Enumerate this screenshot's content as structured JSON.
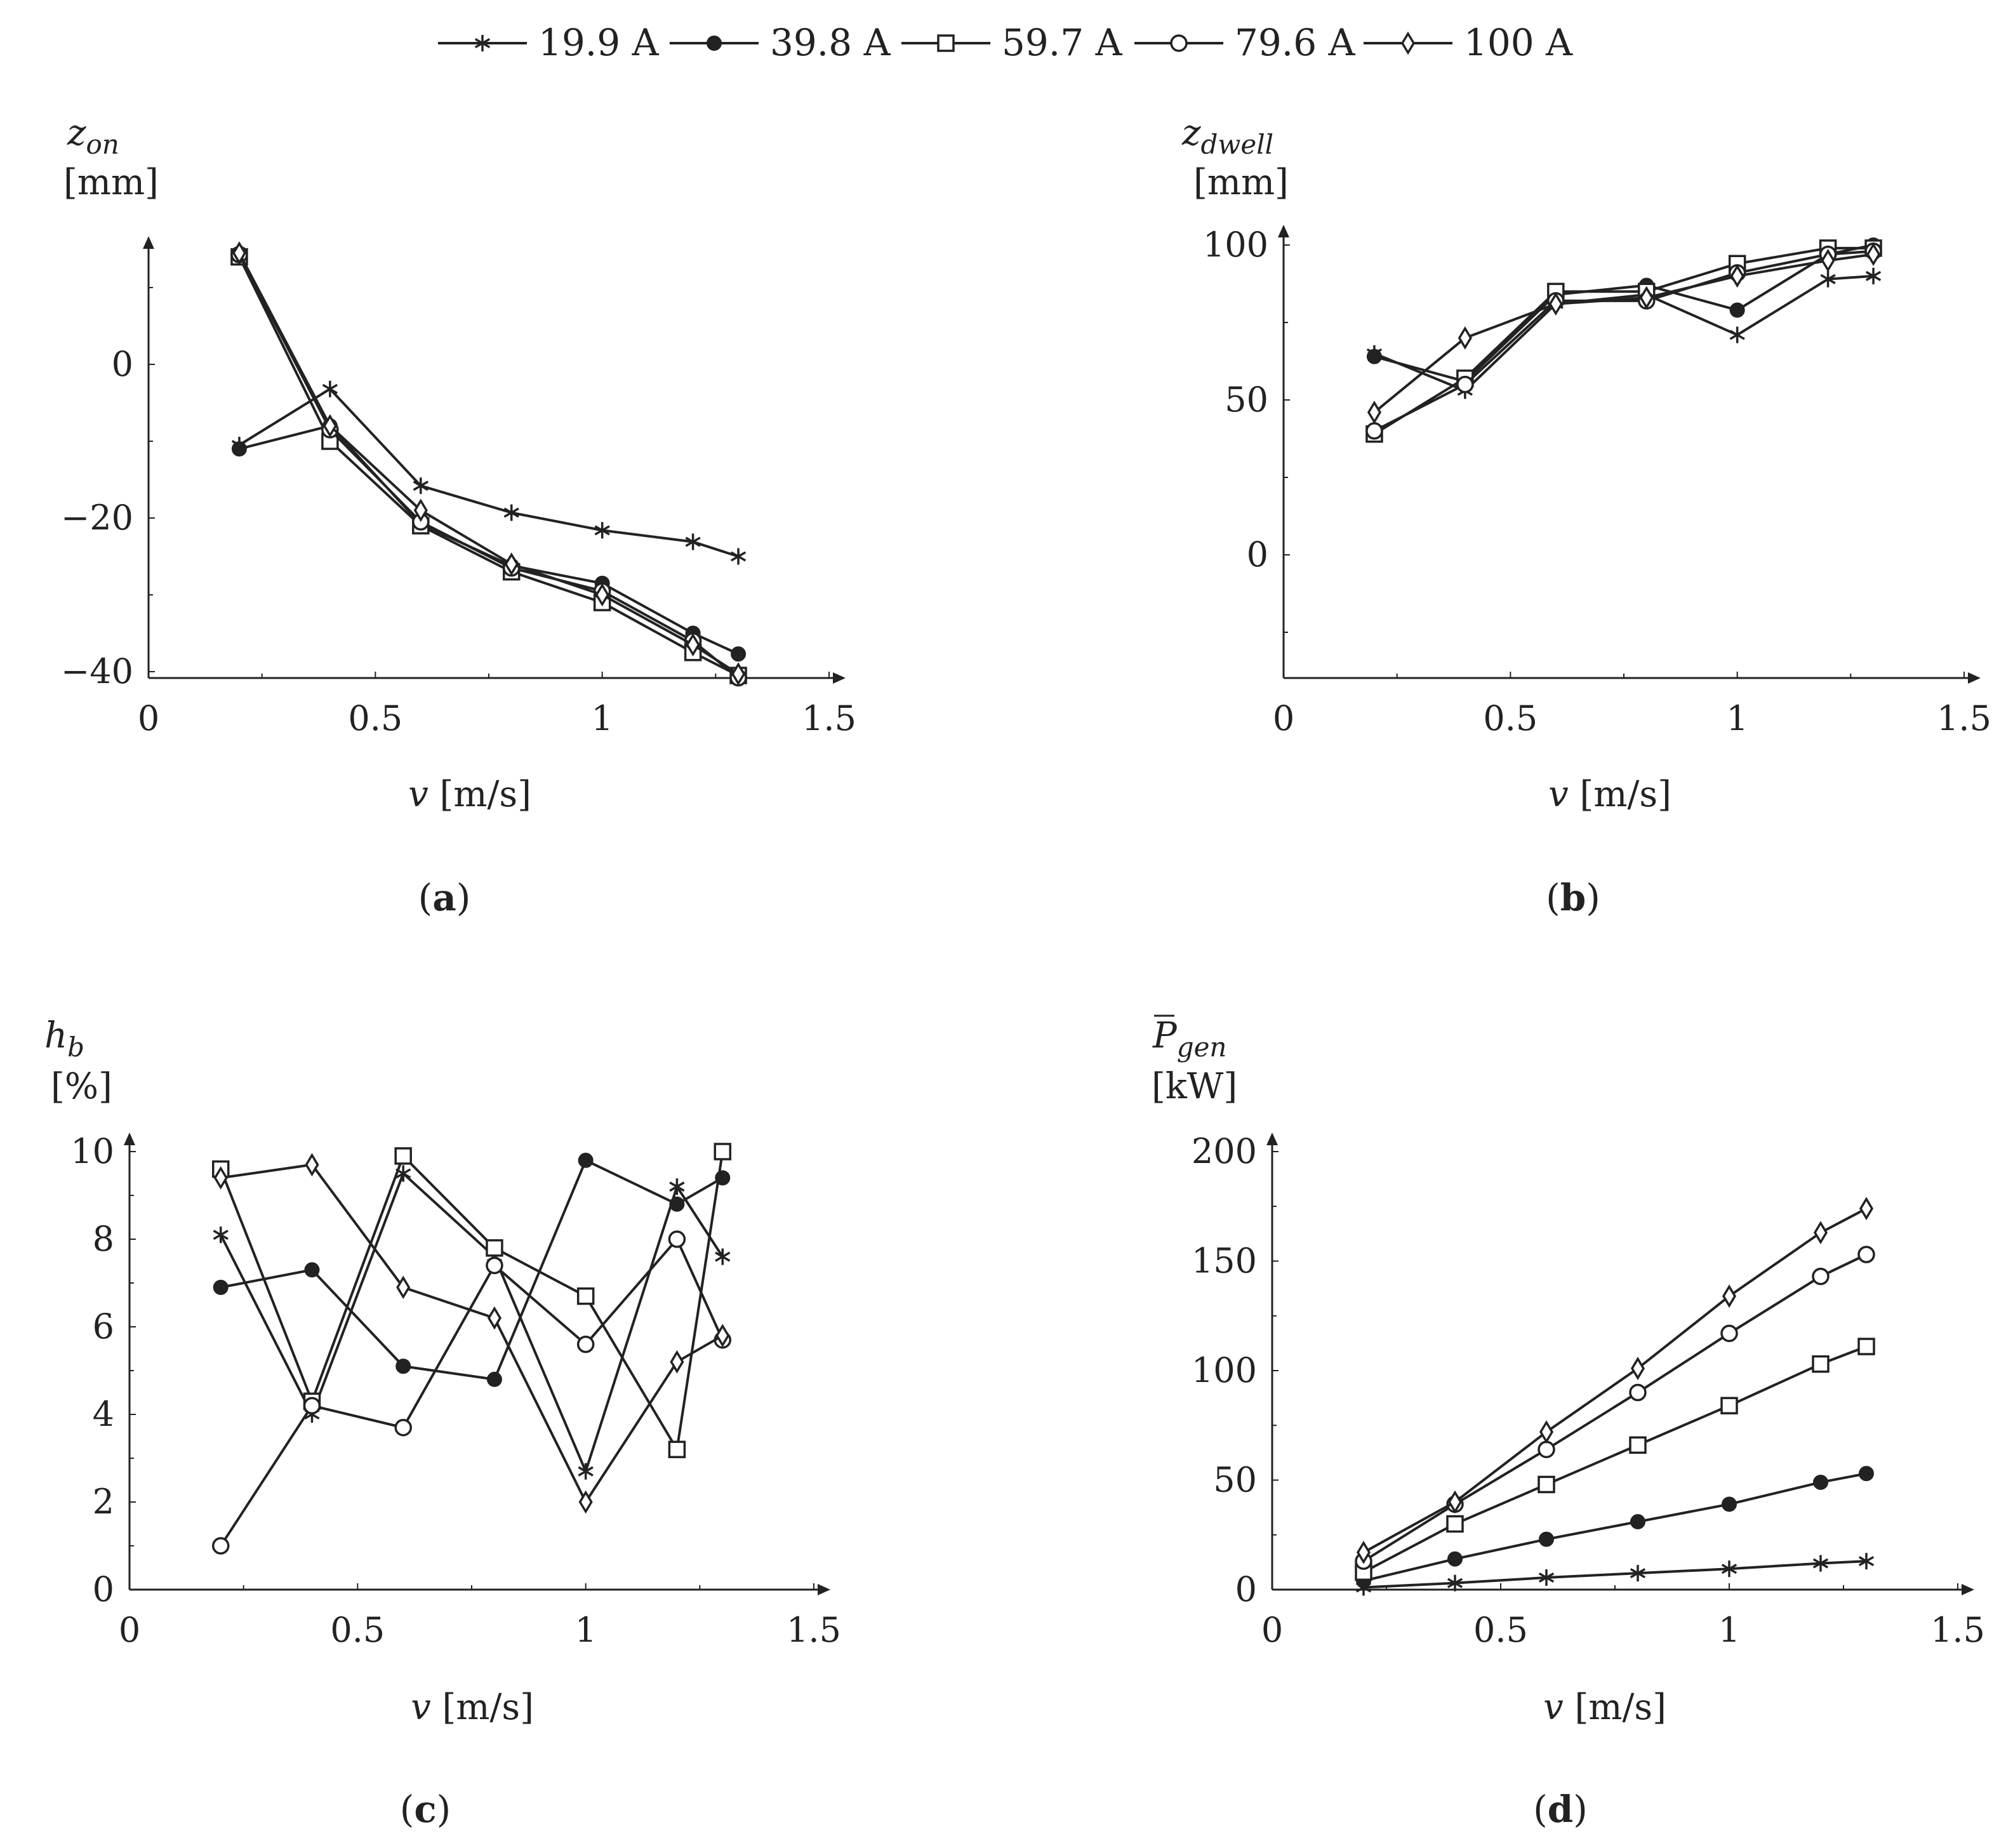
{
  "legend": [
    {
      "name": "19.9 A",
      "marker": "star"
    },
    {
      "name": "39.8 A",
      "marker": "filled-circle"
    },
    {
      "name": "59.7 A",
      "marker": "open-square"
    },
    {
      "name": "79.6 A",
      "marker": "open-circle"
    },
    {
      "name": "100 A",
      "marker": "open-diamond"
    }
  ],
  "chart_data": [
    {
      "type": "line",
      "panel": "(a)",
      "panel_letter": "a",
      "ylabel_symbol": "z",
      "ylabel_sub": "on",
      "ylabel_unit": "[mm]",
      "xlabel_symbol": "v",
      "xlabel_unit": "[m/s]",
      "xlim": [
        0,
        1.5
      ],
      "ylim": [
        -41,
        15
      ],
      "xticks": [
        {
          "v": 0,
          "label": "0"
        },
        {
          "v": 0.5,
          "label": "0.5"
        },
        {
          "v": 1,
          "label": "1"
        },
        {
          "v": 1.5,
          "label": "1.5"
        }
      ],
      "yticks": [
        {
          "v": -40,
          "label": "−40"
        },
        {
          "v": -20,
          "label": "−20"
        },
        {
          "v": 0,
          "label": "0"
        }
      ],
      "x": [
        0.2,
        0.4,
        0.6,
        0.8,
        1.0,
        1.2,
        1.3
      ],
      "series": [
        {
          "name": "19.9 A",
          "values": [
            -10.5,
            -3.2,
            -15.8,
            -19.3,
            -21.6,
            -23.1,
            -25.0
          ]
        },
        {
          "name": "39.8 A",
          "values": [
            -11.0,
            -8.0,
            -20.8,
            -26.2,
            -28.5,
            -35.0,
            -37.7
          ]
        },
        {
          "name": "59.7 A",
          "values": [
            14.0,
            -10.0,
            -21.0,
            -27.0,
            -31.0,
            -37.5,
            -40.5
          ]
        },
        {
          "name": "79.6 A",
          "values": [
            14.3,
            -8.5,
            -20.5,
            -26.5,
            -29.5,
            -36.0,
            -40.8
          ]
        },
        {
          "name": "100 A",
          "values": [
            14.5,
            -8.0,
            -19.0,
            -26.0,
            -30.0,
            -36.5,
            -40.3
          ]
        }
      ]
    },
    {
      "type": "line",
      "panel": "(b)",
      "panel_letter": "b",
      "ylabel_symbol": "z",
      "ylabel_sub": "dwell",
      "ylabel_unit": "[mm]",
      "xlabel_symbol": "v",
      "xlabel_unit": "[m/s]",
      "xlim": [
        0,
        1.5
      ],
      "ylim": [
        -40,
        100
      ],
      "xticks": [
        {
          "v": 0,
          "label": "0"
        },
        {
          "v": 0.5,
          "label": "0.5"
        },
        {
          "v": 1,
          "label": "1"
        },
        {
          "v": 1.5,
          "label": "1.5"
        }
      ],
      "yticks": [
        {
          "v": 0,
          "label": "0"
        },
        {
          "v": 50,
          "label": "50"
        },
        {
          "v": 100,
          "label": "100"
        }
      ],
      "x": [
        0.2,
        0.4,
        0.6,
        0.8,
        1.0,
        1.2,
        1.3
      ],
      "series": [
        {
          "name": "19.9 A",
          "values": [
            65,
            53,
            81,
            84,
            71,
            89,
            90
          ]
        },
        {
          "name": "39.8 A",
          "values": [
            64,
            56,
            84,
            87,
            79,
            97,
            100
          ]
        },
        {
          "name": "59.7 A",
          "values": [
            39,
            57,
            85,
            85,
            94,
            99,
            99
          ]
        },
        {
          "name": "79.6 A",
          "values": [
            40,
            55,
            82,
            82,
            91,
            97,
            98
          ]
        },
        {
          "name": "100 A",
          "values": [
            46,
            70,
            81,
            83,
            90,
            95,
            97
          ]
        }
      ]
    },
    {
      "type": "line",
      "panel": "(c)",
      "panel_letter": "c",
      "ylabel_symbol": "h",
      "ylabel_sub": "b",
      "ylabel_unit": "[%]",
      "xlabel_symbol": "v",
      "xlabel_unit": "[m/s]",
      "xlim": [
        0,
        1.5
      ],
      "ylim": [
        0,
        10
      ],
      "xticks": [
        {
          "v": 0,
          "label": "0"
        },
        {
          "v": 0.5,
          "label": "0.5"
        },
        {
          "v": 1,
          "label": "1"
        },
        {
          "v": 1.5,
          "label": "1.5"
        }
      ],
      "yticks": [
        {
          "v": 0,
          "label": "0"
        },
        {
          "v": 2,
          "label": "2"
        },
        {
          "v": 4,
          "label": "4"
        },
        {
          "v": 6,
          "label": "6"
        },
        {
          "v": 8,
          "label": "8"
        },
        {
          "v": 10,
          "label": "10"
        }
      ],
      "x": [
        0.2,
        0.4,
        0.6,
        0.8,
        1.0,
        1.2,
        1.3
      ],
      "series": [
        {
          "name": "19.9 A",
          "values": [
            8.1,
            4.0,
            9.5,
            7.6,
            2.7,
            9.2,
            7.6
          ]
        },
        {
          "name": "39.8 A",
          "values": [
            6.9,
            7.3,
            5.1,
            4.8,
            9.8,
            8.8,
            9.4
          ]
        },
        {
          "name": "59.7 A",
          "values": [
            9.6,
            4.3,
            9.9,
            7.8,
            6.7,
            3.2,
            10.0
          ]
        },
        {
          "name": "79.6 A",
          "values": [
            1.0,
            4.2,
            3.7,
            7.4,
            5.6,
            8.0,
            5.7
          ]
        },
        {
          "name": "100 A",
          "values": [
            9.4,
            9.7,
            6.9,
            6.2,
            2.0,
            5.2,
            5.8
          ]
        }
      ]
    },
    {
      "type": "line",
      "panel": "(d)",
      "panel_letter": "d",
      "ylabel_symbol": "P",
      "ylabel_sub": "gen",
      "ylabel_overline": true,
      "ylabel_unit": "[kW]",
      "xlabel_symbol": "v",
      "xlabel_unit": "[m/s]",
      "xlim": [
        0,
        1.5
      ],
      "ylim": [
        0,
        200
      ],
      "xticks": [
        {
          "v": 0,
          "label": "0"
        },
        {
          "v": 0.5,
          "label": "0.5"
        },
        {
          "v": 1,
          "label": "1"
        },
        {
          "v": 1.5,
          "label": "1.5"
        }
      ],
      "yticks": [
        {
          "v": 0,
          "label": "0"
        },
        {
          "v": 50,
          "label": "50"
        },
        {
          "v": 100,
          "label": "100"
        },
        {
          "v": 150,
          "label": "150"
        },
        {
          "v": 200,
          "label": "200"
        }
      ],
      "x": [
        0.2,
        0.4,
        0.6,
        0.8,
        1.0,
        1.2,
        1.3
      ],
      "series": [
        {
          "name": "19.9 A",
          "values": [
            1,
            3,
            5.5,
            7.5,
            9.5,
            12,
            13
          ]
        },
        {
          "name": "39.8 A",
          "values": [
            4,
            14,
            23,
            31,
            39,
            49,
            53
          ]
        },
        {
          "name": "59.7 A",
          "values": [
            8,
            30,
            48,
            66,
            84,
            103,
            111
          ]
        },
        {
          "name": "79.6 A",
          "values": [
            13,
            39,
            64,
            90,
            117,
            143,
            153
          ]
        },
        {
          "name": "100 A",
          "values": [
            17,
            40,
            72,
            101,
            134,
            163,
            174
          ]
        }
      ]
    }
  ]
}
